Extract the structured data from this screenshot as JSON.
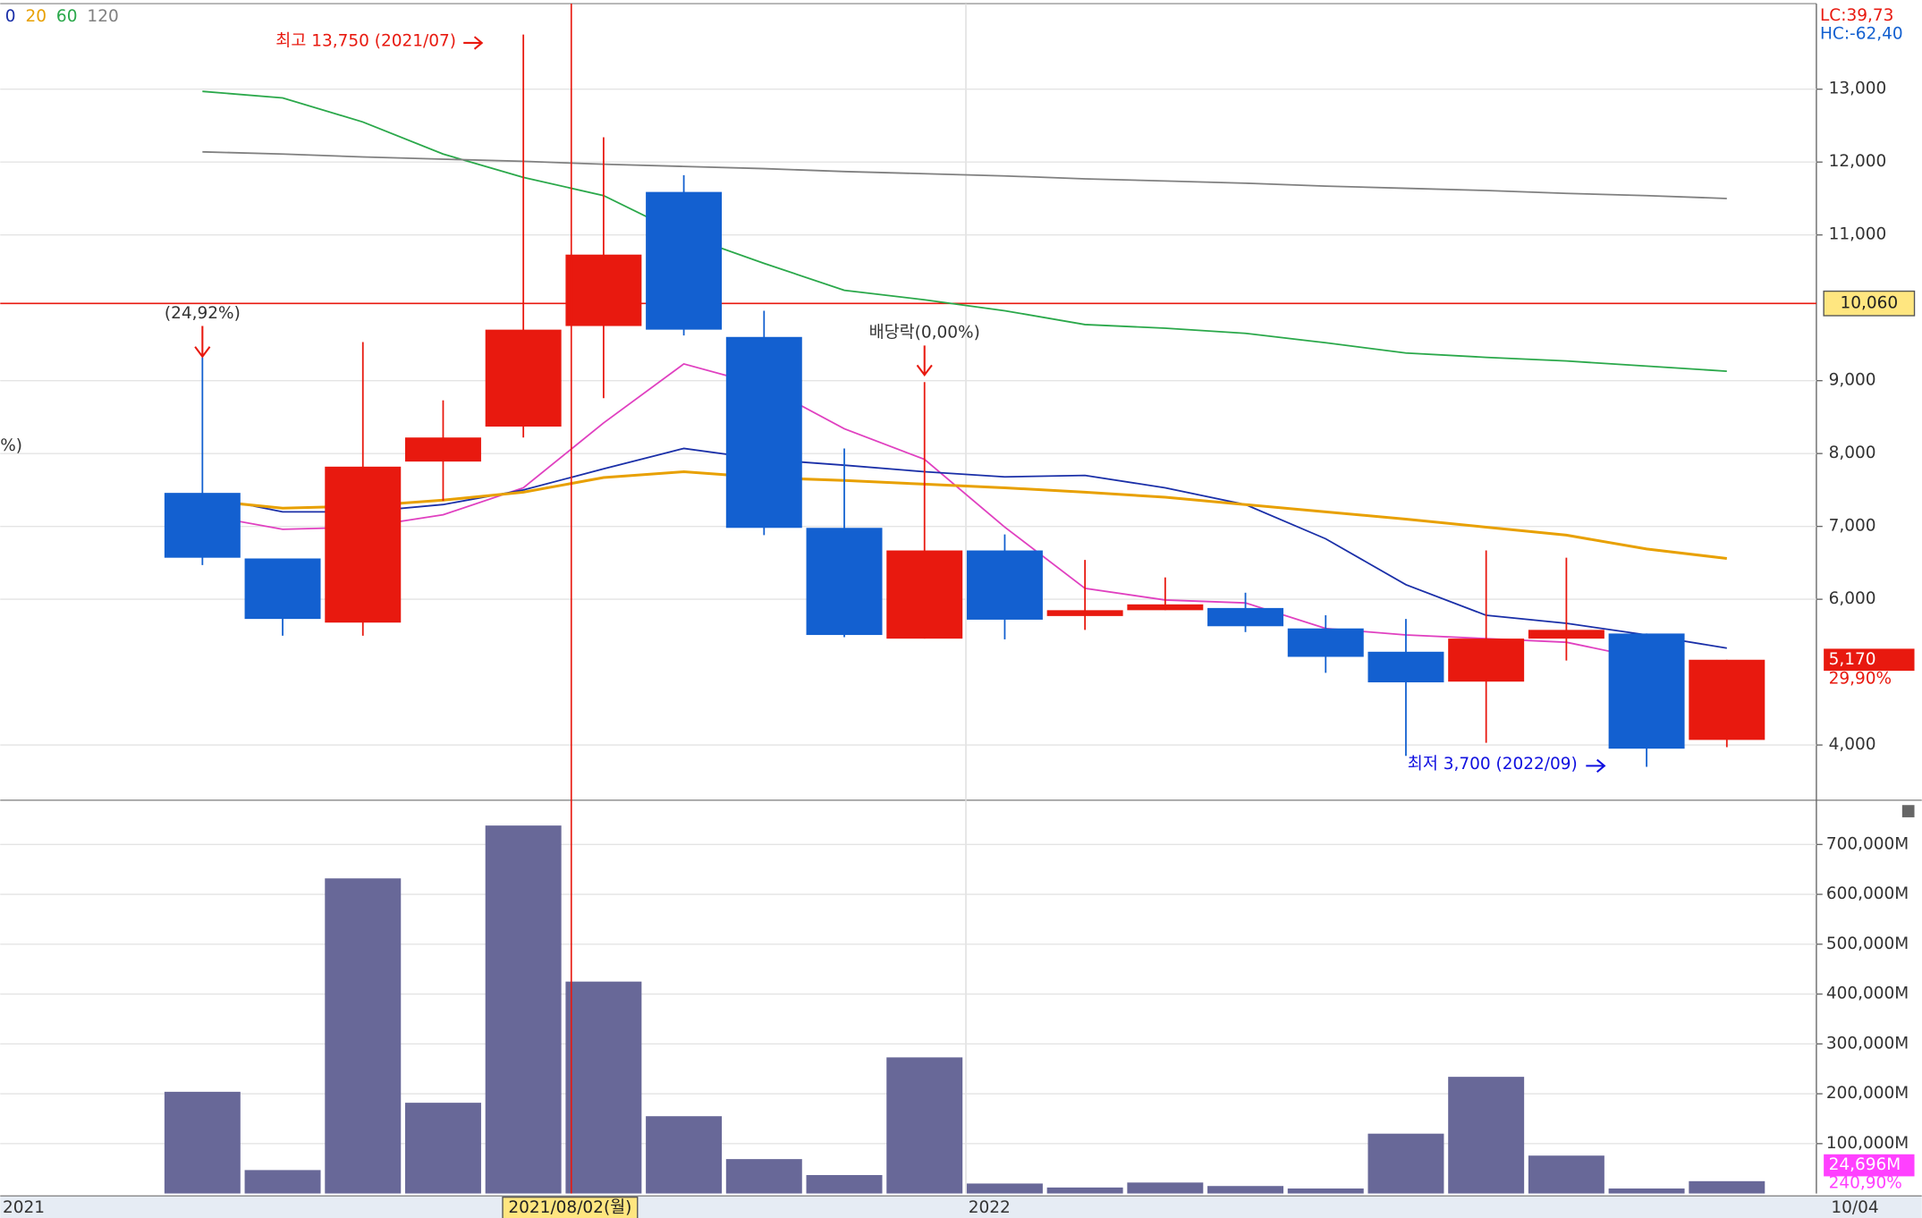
{
  "chart_data": {
    "type": "candlestick",
    "categories": [
      null,
      null,
      null,
      null,
      null,
      null,
      null,
      null,
      null,
      null,
      null,
      null,
      null,
      null,
      null,
      null,
      null,
      null,
      null,
      null
    ],
    "open": [
      7460,
      6560,
      5680,
      7890,
      8370,
      9750,
      11590,
      9600,
      6980,
      5460,
      6670,
      5770,
      5850,
      5880,
      5600,
      5280,
      4870,
      5460,
      5530,
      4070
    ],
    "high": [
      9320,
      6560,
      9530,
      8730,
      13750,
      12340,
      11820,
      9960,
      8070,
      8980,
      6890,
      6540,
      6300,
      6090,
      5780,
      5730,
      6670,
      6570,
      5530,
      5170
    ],
    "low": [
      6470,
      5500,
      5500,
      7350,
      8220,
      8760,
      9620,
      6880,
      5480,
      5460,
      5450,
      5580,
      5850,
      5550,
      4990,
      3850,
      4030,
      5160,
      3700,
      3970
    ],
    "close": [
      6570,
      5730,
      7820,
      8220,
      9700,
      10730,
      9700,
      6980,
      5510,
      6670,
      5720,
      5850,
      5930,
      5630,
      5210,
      4860,
      5460,
      5580,
      3950,
      5170
    ],
    "close_labels": [
      null,
      null,
      null,
      null,
      null,
      null,
      null,
      null,
      null,
      null,
      null,
      null,
      null,
      null,
      null,
      null,
      null,
      null,
      null,
      "5,170"
    ],
    "up_color": "#e8190f",
    "down_color": "#1360d0",
    "ma_series": [
      {
        "color": "#e040c0",
        "values": [
          7160,
          6960,
          6990,
          7160,
          7530,
          8420,
          9230,
          8930,
          8340,
          7920,
          6990,
          6150,
          5990,
          5950,
          5600,
          5510,
          5460,
          5410,
          5180,
          null
        ]
      },
      {
        "name": "0",
        "color": "#1a2fa8",
        "values": [
          7420,
          7200,
          7200,
          7300,
          7500,
          7790,
          8070,
          7920,
          7840,
          7750,
          7680,
          7700,
          7530,
          7300,
          6830,
          6200,
          5780,
          5670,
          5510,
          5330
        ]
      },
      {
        "name": "20",
        "color": "#e8a000",
        "values": [
          7360,
          7250,
          7280,
          7360,
          7470,
          7670,
          7750,
          7670,
          7630,
          7580,
          7530,
          7470,
          7400,
          7300,
          7200,
          7100,
          6990,
          6880,
          6690,
          6560
        ]
      },
      {
        "name": "60",
        "color": "#2aa84a",
        "values": [
          12970,
          12880,
          12550,
          12110,
          11790,
          11540,
          11000,
          10610,
          10240,
          10110,
          9960,
          9770,
          9720,
          9650,
          9520,
          9380,
          9320,
          9270,
          9200,
          9130
        ]
      },
      {
        "name": "120",
        "color": "#808080",
        "values": [
          12140,
          12110,
          12070,
          12040,
          12010,
          11970,
          11940,
          11910,
          11870,
          11840,
          11810,
          11770,
          11740,
          11710,
          11670,
          11640,
          11610,
          11570,
          11540,
          11500
        ]
      }
    ],
    "ylim": [
      3260,
      14140
    ],
    "yticks": [
      {
        "value": 4000,
        "label": "4,000"
      },
      {
        "value": 6000,
        "label": "6,000"
      },
      {
        "value": 7000,
        "label": "7,000"
      },
      {
        "value": 8000,
        "label": "8,000"
      },
      {
        "value": 9000,
        "label": "9,000"
      },
      {
        "value": 11000,
        "label": "11,000"
      },
      {
        "value": 12000,
        "label": "12,000"
      },
      {
        "value": 13000,
        "label": "13,000"
      }
    ],
    "grid": true,
    "crosshair": {
      "value": 10060,
      "label": "10,060",
      "date": "2021/08/02(월)"
    },
    "lc": "LC:39,73",
    "hc": "HC:-62,40",
    "last_change": "29,90%",
    "annotations": {
      "high": "최고 13,750 (2021/07)",
      "low": "최저 3,700 (2022/09)",
      "rate": "(24,92%)",
      "dividend": "배당락(0,00%)",
      "cut": "%)"
    },
    "x_labels": [
      "2021",
      "2022",
      "10/04"
    ],
    "volume": {
      "type": "bar",
      "color": "#686898",
      "values": [
        204000,
        47000,
        632000,
        182000,
        738000,
        425000,
        155000,
        69000,
        37000,
        273000,
        20000,
        12000,
        22000,
        15000,
        10000,
        120000,
        234000,
        76000,
        10000,
        24696
      ],
      "value_labels": [
        null,
        null,
        null,
        null,
        null,
        null,
        null,
        null,
        null,
        null,
        null,
        null,
        null,
        null,
        null,
        null,
        null,
        null,
        null,
        "24,696M"
      ],
      "ylim": [
        0,
        784000
      ],
      "yticks": [
        {
          "value": 100000,
          "label": "100,000M"
        },
        {
          "value": 200000,
          "label": "200,000M"
        },
        {
          "value": 300000,
          "label": "300,000M"
        },
        {
          "value": 400000,
          "label": "400,000M"
        },
        {
          "value": 500000,
          "label": "500,000M"
        },
        {
          "value": 600000,
          "label": "600,000M"
        },
        {
          "value": 700000,
          "label": "700,000M"
        }
      ],
      "ratio": "240,90%"
    }
  }
}
